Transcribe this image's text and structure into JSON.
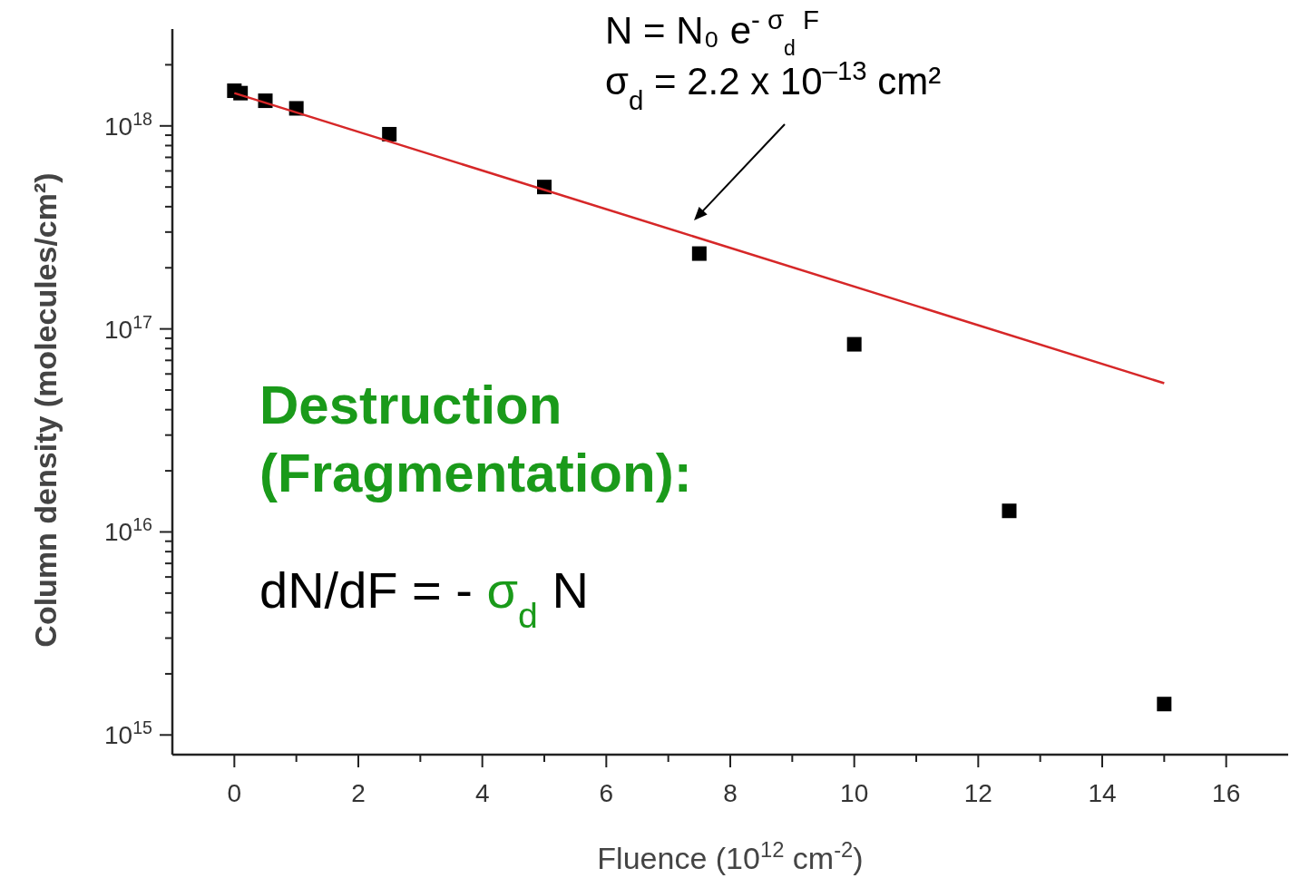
{
  "chart_data": {
    "type": "scatter",
    "xlabel": "Fluence (10$^{12}$ cm$^{-2}$)",
    "ylabel": "Column density  (molecules/cm²)",
    "log": "y",
    "xlim": [
      -1,
      17
    ],
    "ylim": [
      800000000000000.0,
      3e+18
    ],
    "xticks": [
      0,
      {
        "value": 1,
        "label": null
      },
      2,
      {
        "value": 3,
        "label": null
      },
      4,
      {
        "value": 5,
        "label": null
      },
      6,
      {
        "value": 7,
        "label": null
      },
      8,
      {
        "value": 9,
        "label": null
      },
      10,
      {
        "value": 11,
        "label": null
      },
      12,
      {
        "value": 13,
        "label": null
      },
      14,
      {
        "value": 15,
        "label": null
      },
      16
    ],
    "yticks": [
      {
        "value": 1000000000000000.0,
        "label": "10$^{15}$"
      },
      {
        "value": 2000000000000000.0,
        "label": null
      },
      {
        "value": 3000000000000000.0,
        "label": null
      },
      {
        "value": 4000000000000000.0,
        "label": null
      },
      {
        "value": 5000000000000000.0,
        "label": null
      },
      {
        "value": 6000000000000000.0,
        "label": null
      },
      {
        "value": 7000000000000000.0,
        "label": null
      },
      {
        "value": 8000000000000000.0,
        "label": null
      },
      {
        "value": 9000000000000000.0,
        "label": null
      },
      {
        "value": 1e+16,
        "label": "10$^{16}$"
      },
      {
        "value": 2e+16,
        "label": null
      },
      {
        "value": 3e+16,
        "label": null
      },
      {
        "value": 4e+16,
        "label": null
      },
      {
        "value": 5e+16,
        "label": null
      },
      {
        "value": 6e+16,
        "label": null
      },
      {
        "value": 7e+16,
        "label": null
      },
      {
        "value": 8e+16,
        "label": null
      },
      {
        "value": 9e+16,
        "label": null
      },
      {
        "value": 1e+17,
        "label": "10$^{17}$"
      },
      {
        "value": 2e+17,
        "label": null
      },
      {
        "value": 3e+17,
        "label": null
      },
      {
        "value": 4e+17,
        "label": null
      },
      {
        "value": 5e+17,
        "label": null
      },
      {
        "value": 6e+17,
        "label": null
      },
      {
        "value": 7e+17,
        "label": null
      },
      {
        "value": 8e+17,
        "label": null
      },
      {
        "value": 9e+17,
        "label": null
      },
      {
        "value": 1e+18,
        "label": "10$^{18}$"
      },
      {
        "value": 2e+18,
        "label": null
      }
    ],
    "grid": false,
    "marker": "square",
    "series": [
      {
        "color": "#000000",
        "x": [
          0,
          0.1,
          0.5,
          1,
          2.5,
          5,
          7.5,
          10,
          12.5,
          15
        ],
        "values": [
          1.49e+18,
          1.45e+18,
          1.33e+18,
          1.22e+18,
          9.1e+17,
          5e+17,
          2.35e+17,
          8.4e+16,
          1.27e+16,
          1420000000000000.0
        ]
      },
      {
        "type": "line",
        "color": "#d62728",
        "marker": "none",
        "line_style": "solid",
        "x": [
          0,
          15
        ],
        "values": [
          1.45e+18,
          5.4e+16
        ]
      }
    ],
    "annotations": [
      "N = N₀ e$^{- σ}$$_{d}$$^{ F}$",
      "σ$_{d}$ = 2.2 x 10$^{–13}$ cm²",
      "Destruction",
      "(Fragmentation):",
      "dN/dF = - σ$_{d}$ N"
    ]
  }
}
